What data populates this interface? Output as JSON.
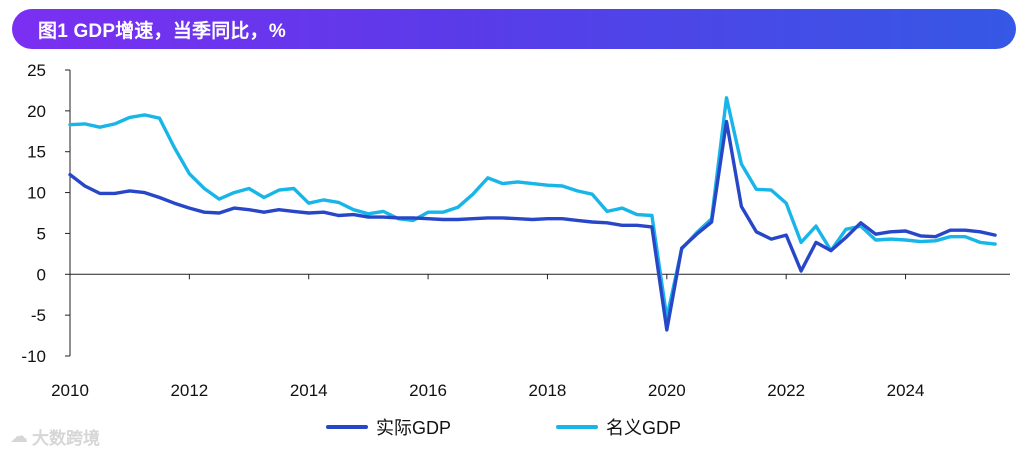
{
  "header": {
    "title": "图1 GDP增速，当季同比，%"
  },
  "watermark": {
    "text": "大数跨境",
    "icon": "cloud-chat-icon"
  },
  "colors": {
    "real": "#2847c8",
    "nominal": "#18b5e8",
    "axis": "#222222"
  },
  "chart_data": {
    "type": "line",
    "title": "图1 GDP增速，当季同比，%",
    "xlabel": "",
    "ylabel": "",
    "xlim": [
      2010,
      2025.75
    ],
    "ylim": [
      -10,
      25
    ],
    "yticks": [
      "25",
      "20",
      "15",
      "10",
      "5",
      "0",
      "-5",
      "-10"
    ],
    "ytick_values": [
      25,
      20,
      15,
      10,
      5,
      0,
      -5,
      -10
    ],
    "xticks": [
      "2010",
      "2012",
      "2014",
      "2016",
      "2018",
      "2020",
      "2022",
      "2024"
    ],
    "xtick_values": [
      2010,
      2012,
      2014,
      2016,
      2018,
      2020,
      2022,
      2024
    ],
    "legend_position": "bottom",
    "series": [
      {
        "name": "实际GDP",
        "color": "#2847c8",
        "x": [
          2010,
          2010.25,
          2010.5,
          2010.75,
          2011,
          2011.25,
          2011.5,
          2011.75,
          2012,
          2012.25,
          2012.5,
          2012.75,
          2013,
          2013.25,
          2013.5,
          2013.75,
          2014,
          2014.25,
          2014.5,
          2014.75,
          2015,
          2015.25,
          2015.5,
          2015.75,
          2016,
          2016.25,
          2016.5,
          2016.75,
          2017,
          2017.25,
          2017.5,
          2017.75,
          2018,
          2018.25,
          2018.5,
          2018.75,
          2019,
          2019.25,
          2019.5,
          2019.75,
          2020,
          2020.25,
          2020.5,
          2020.75,
          2021,
          2021.25,
          2021.5,
          2021.75,
          2022,
          2022.25,
          2022.5,
          2022.75,
          2023,
          2023.25,
          2023.5,
          2023.75,
          2024,
          2024.25,
          2024.5,
          2024.75,
          2025,
          2025.25,
          2025.5
        ],
        "values": [
          12.2,
          10.8,
          9.9,
          9.9,
          10.2,
          10.0,
          9.4,
          8.7,
          8.1,
          7.6,
          7.5,
          8.1,
          7.9,
          7.6,
          7.9,
          7.7,
          7.5,
          7.6,
          7.2,
          7.3,
          7.0,
          7.0,
          6.9,
          6.9,
          6.8,
          6.7,
          6.7,
          6.8,
          6.9,
          6.9,
          6.8,
          6.7,
          6.8,
          6.8,
          6.6,
          6.4,
          6.3,
          6.0,
          6.0,
          5.8,
          -6.8,
          3.2,
          4.9,
          6.4,
          18.7,
          8.3,
          5.2,
          4.3,
          4.8,
          0.4,
          3.9,
          2.9,
          4.5,
          6.3,
          4.9,
          5.2,
          5.3,
          4.7,
          4.6,
          5.4,
          5.4,
          5.2,
          4.8
        ]
      },
      {
        "name": "名义GDP",
        "color": "#18b5e8",
        "x": [
          2010,
          2010.25,
          2010.5,
          2010.75,
          2011,
          2011.25,
          2011.5,
          2011.75,
          2012,
          2012.25,
          2012.5,
          2012.75,
          2013,
          2013.25,
          2013.5,
          2013.75,
          2014,
          2014.25,
          2014.5,
          2014.75,
          2015,
          2015.25,
          2015.5,
          2015.75,
          2016,
          2016.25,
          2016.5,
          2016.75,
          2017,
          2017.25,
          2017.5,
          2017.75,
          2018,
          2018.25,
          2018.5,
          2018.75,
          2019,
          2019.25,
          2019.5,
          2019.75,
          2020,
          2020.25,
          2020.5,
          2020.75,
          2021,
          2021.25,
          2021.5,
          2021.75,
          2022,
          2022.25,
          2022.5,
          2022.75,
          2023,
          2023.25,
          2023.5,
          2023.75,
          2024,
          2024.25,
          2024.5,
          2024.75,
          2025,
          2025.25,
          2025.5
        ],
        "values": [
          18.3,
          18.4,
          18.0,
          18.4,
          19.2,
          19.5,
          19.1,
          15.5,
          12.3,
          10.5,
          9.2,
          10.0,
          10.5,
          9.4,
          10.3,
          10.5,
          8.7,
          9.1,
          8.8,
          7.9,
          7.4,
          7.7,
          6.8,
          6.6,
          7.6,
          7.6,
          8.2,
          9.8,
          11.8,
          11.1,
          11.3,
          11.1,
          10.9,
          10.8,
          10.2,
          9.8,
          7.7,
          8.1,
          7.3,
          7.2,
          -5.3,
          3.1,
          5.1,
          6.8,
          21.6,
          13.5,
          10.4,
          10.3,
          8.7,
          3.9,
          5.9,
          2.9,
          5.5,
          5.9,
          4.2,
          4.3,
          4.2,
          4.0,
          4.1,
          4.6,
          4.6,
          3.9,
          3.7
        ]
      }
    ]
  }
}
